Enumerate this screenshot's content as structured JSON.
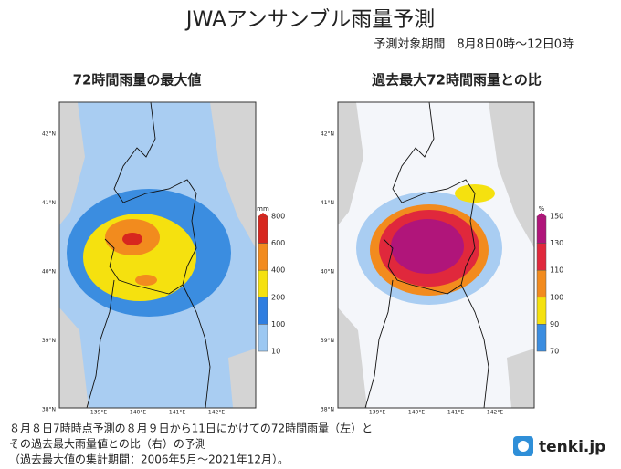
{
  "header": {
    "title": "JWAアンサンブル雨量予測",
    "period": "予測対象期間　8月8日0時～12日0時"
  },
  "maps": [
    {
      "title": "72時間雨量の最大値",
      "legend": {
        "unit": "mm",
        "labels": [
          800,
          600,
          400,
          200,
          100,
          10
        ]
      }
    },
    {
      "title": "過去最大72時間雨量との比",
      "legend": {
        "unit": "%",
        "labels": [
          150,
          130,
          110,
          100,
          90,
          70
        ]
      }
    }
  ],
  "axes": {
    "lat": [
      "42°N",
      "41°N",
      "40°N",
      "39°N",
      "38°N"
    ],
    "lon": [
      "139°E",
      "140°E",
      "141°E",
      "142°E"
    ]
  },
  "caption": [
    "８月８日7時時点予測の８月９日から11日にかけての72時間雨量（左）と",
    "その過去最大雨量値との比（右）の予測",
    "（過去最大値の集計期間：2006年5月～2021年12月）。"
  ],
  "logo": "tenki.jp"
}
